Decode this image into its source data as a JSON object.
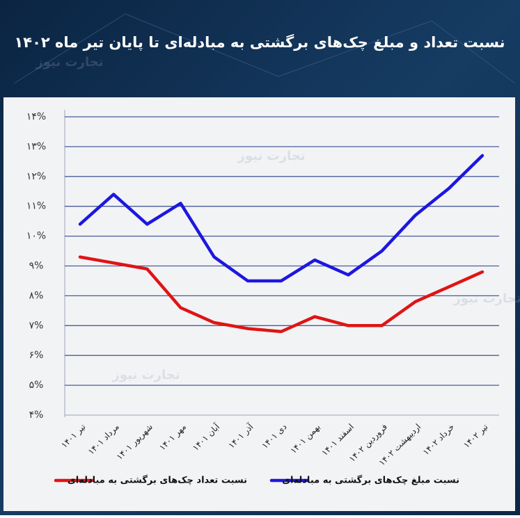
{
  "chart_data": {
    "type": "line",
    "title": "نسبت تعداد و مبلغ چک‌های برگشتی به مبادله‌ای تا پایان تیر ماه ۱۴۰۲",
    "watermark": "تجارت نیوز",
    "categories": [
      "تیر ۱۴۰۱",
      "مرداد ۱۴۰۱",
      "شهریور ۱۴۰۱",
      "مهر ۱۴۰۱",
      "آبان ۱۴۰۱",
      "آذر ۱۴۰۱",
      "دی ۱۴۰۱",
      "بهمن ۱۴۰۱",
      "اسفند ۱۴۰۱",
      "فروردین ۱۴۰۲",
      "اردیبهشت ۱۴۰۲",
      "خرداد ۱۴۰۲",
      "تیر ۱۴۰۲"
    ],
    "series": [
      {
        "name": "نسبت تعداد چک‌های برگشتی به مبادله‌ای",
        "color": "#e01414",
        "values": [
          9.3,
          9.1,
          8.9,
          7.6,
          7.1,
          6.9,
          6.8,
          7.3,
          7.0,
          7.0,
          7.8,
          8.3,
          8.8
        ]
      },
      {
        "name": "نسبت مبلغ چک‌های برگشتی به مبادله‌ای",
        "color": "#1c17e0",
        "values": [
          10.4,
          11.4,
          10.4,
          11.1,
          9.3,
          8.5,
          8.5,
          9.2,
          8.7,
          9.5,
          10.7,
          11.6,
          12.7
        ]
      }
    ],
    "ylim": [
      4,
      14
    ],
    "yticks": [
      {
        "value": 4,
        "label": "۴%"
      },
      {
        "value": 5,
        "label": "۵%"
      },
      {
        "value": 6,
        "label": "۶%"
      },
      {
        "value": 7,
        "label": "۷%"
      },
      {
        "value": 8,
        "label": "۸%"
      },
      {
        "value": 9,
        "label": "۹%"
      },
      {
        "value": 10,
        "label": "۱۰%"
      },
      {
        "value": 11,
        "label": "۱۱%"
      },
      {
        "value": 12,
        "label": "۱۲%"
      },
      {
        "value": 13,
        "label": "۱۳%"
      },
      {
        "value": 14,
        "label": "۱۴%"
      }
    ],
    "grid": true
  }
}
